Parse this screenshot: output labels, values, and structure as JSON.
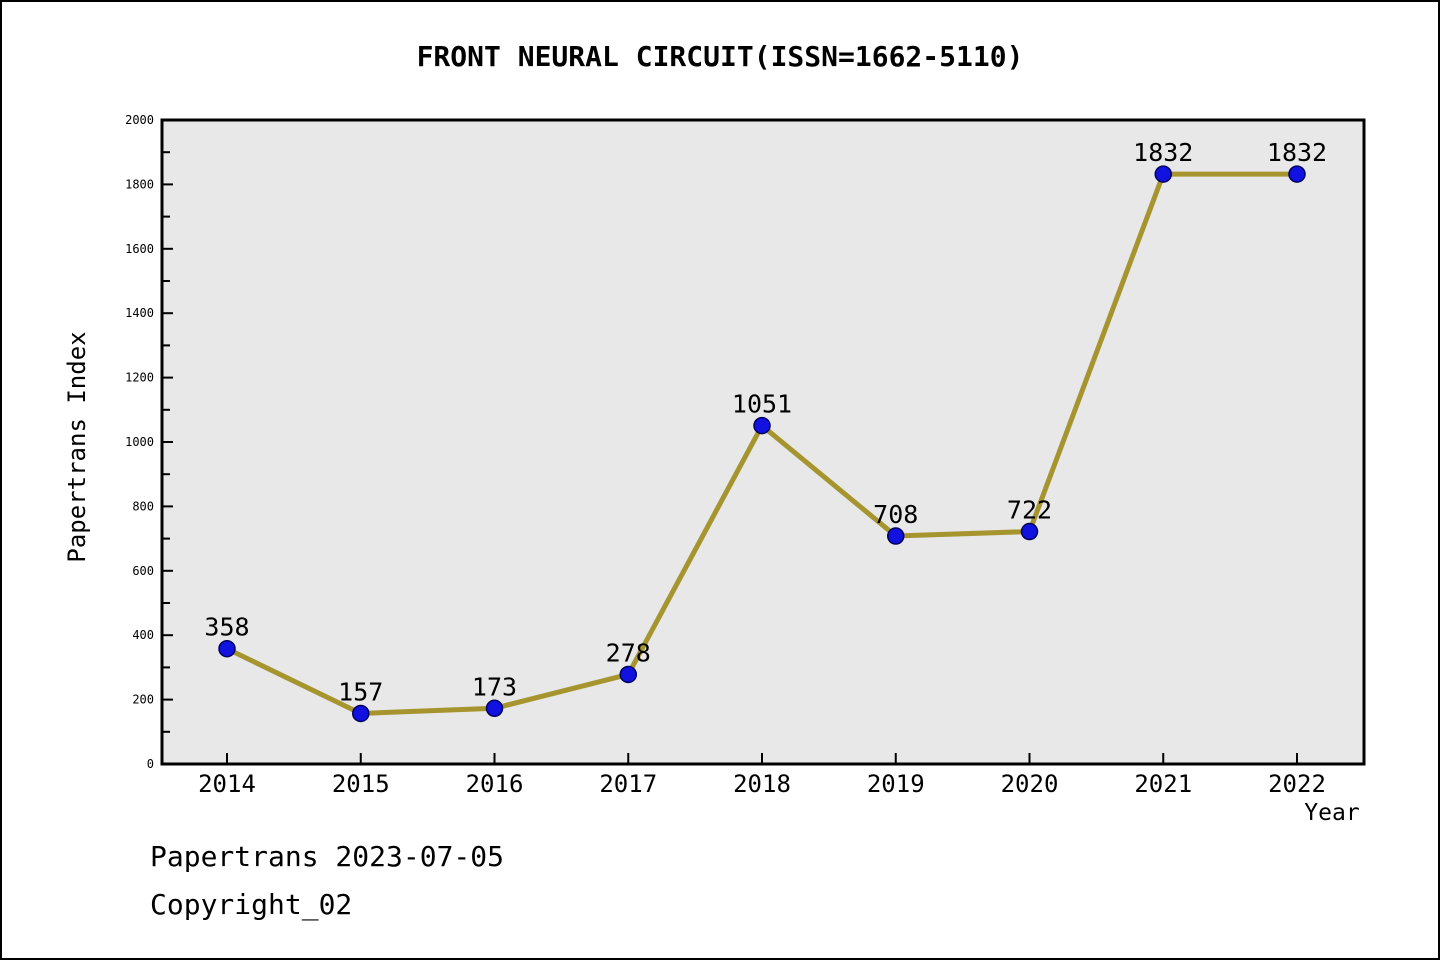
{
  "page": {
    "background": "#ffffff",
    "border_color": "#000000"
  },
  "chart_data": {
    "type": "line",
    "title": "FRONT NEURAL CIRCUIT(ISSN=1662-5110)",
    "xlabel": "Year",
    "ylabel": "Papertrans Index",
    "x": [
      2014,
      2015,
      2016,
      2017,
      2018,
      2019,
      2020,
      2021,
      2022
    ],
    "values": [
      358,
      157,
      173,
      278,
      1051,
      708,
      722,
      1832,
      1832
    ],
    "point_labels": [
      "358",
      "157",
      "173",
      "278",
      "1051",
      "708",
      "722",
      "1832",
      "1832"
    ],
    "ylim": [
      0,
      2000
    ],
    "y_major_step": 200,
    "y_minor_step": 100,
    "grid": false,
    "legend": "none",
    "line_color": "#a6952f",
    "marker_color": "#1212e0",
    "marker_edge_color": "#000060",
    "plot_bg": "#e8e8e8",
    "axis_color": "#000000",
    "tick_label_color": "#000000"
  },
  "footer": {
    "line1": "Papertrans 2023-07-05",
    "line2": "Copyright_02"
  }
}
